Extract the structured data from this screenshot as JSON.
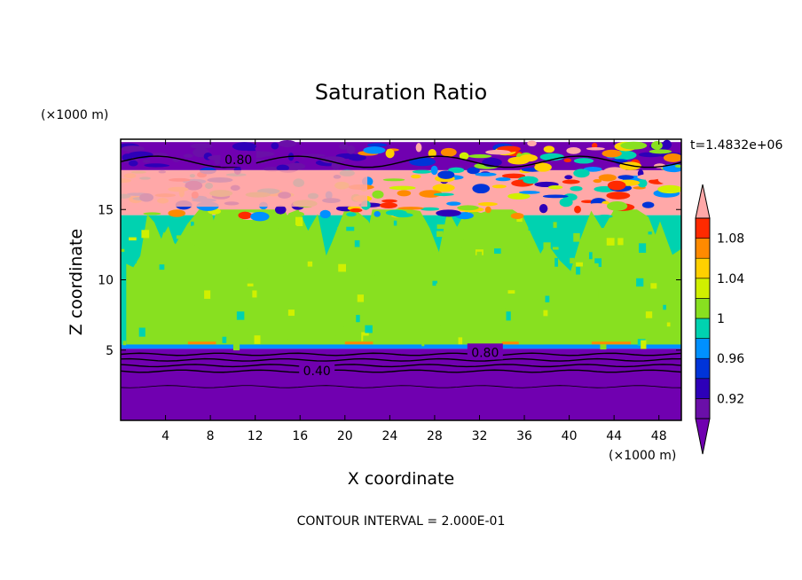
{
  "chart_data": {
    "type": "heatmap",
    "title": "Saturation Ratio",
    "xlabel": "X coordinate",
    "ylabel": "Z coordinate",
    "x_unit": "(×1000 m)",
    "y_unit": "(×1000 m)",
    "time_label": "t=1.4832e+06",
    "footer": "CONTOUR INTERVAL = 2.000E-01",
    "xlim": [
      0,
      50
    ],
    "ylim": [
      0,
      20
    ],
    "x_ticks": [
      4,
      8,
      12,
      16,
      20,
      24,
      28,
      32,
      36,
      40,
      44,
      48
    ],
    "y_ticks": [
      5,
      10,
      15
    ],
    "colorbar": {
      "levels": [
        0.9,
        0.92,
        0.94,
        0.96,
        0.98,
        1.0,
        1.02,
        1.04,
        1.06,
        1.08,
        1.1
      ],
      "labels": [
        "0.92",
        "0.96",
        "1",
        "1.04",
        "1.08"
      ],
      "label_values": [
        0.92,
        0.96,
        1.0,
        1.04,
        1.08
      ],
      "colors": [
        "#6a0fa8",
        "#2d00b8",
        "#0034d8",
        "#0090ff",
        "#00d2b0",
        "#88e020",
        "#d0f000",
        "#ffd000",
        "#ff8a00",
        "#ff2a00",
        "#ffa8a8"
      ],
      "under_color": "#7000b0",
      "over_color": "#ffa8a8"
    },
    "bands": [
      {
        "z": [
          0,
          5.1
        ],
        "value": 0.5,
        "color": "#7000b0"
      },
      {
        "z": [
          5.1,
          5.4
        ],
        "value": 0.94,
        "color": "#0090ff"
      },
      {
        "z": [
          5.4,
          14.6
        ],
        "value": 0.99,
        "color": "#00d2b0"
      },
      {
        "z": [
          14.6,
          17.8
        ],
        "value": 1.1,
        "color": "#ffa8a8"
      },
      {
        "z": [
          17.8,
          19.8
        ],
        "value": 0.85,
        "color": "#7000b0"
      }
    ],
    "contour_labels": [
      {
        "text": "0.80",
        "x": 10.5,
        "z": 18.6
      },
      {
        "text": "0.80",
        "x": 32.5,
        "z": 4.9
      },
      {
        "text": "0.40",
        "x": 17.5,
        "z": 3.6
      }
    ]
  }
}
